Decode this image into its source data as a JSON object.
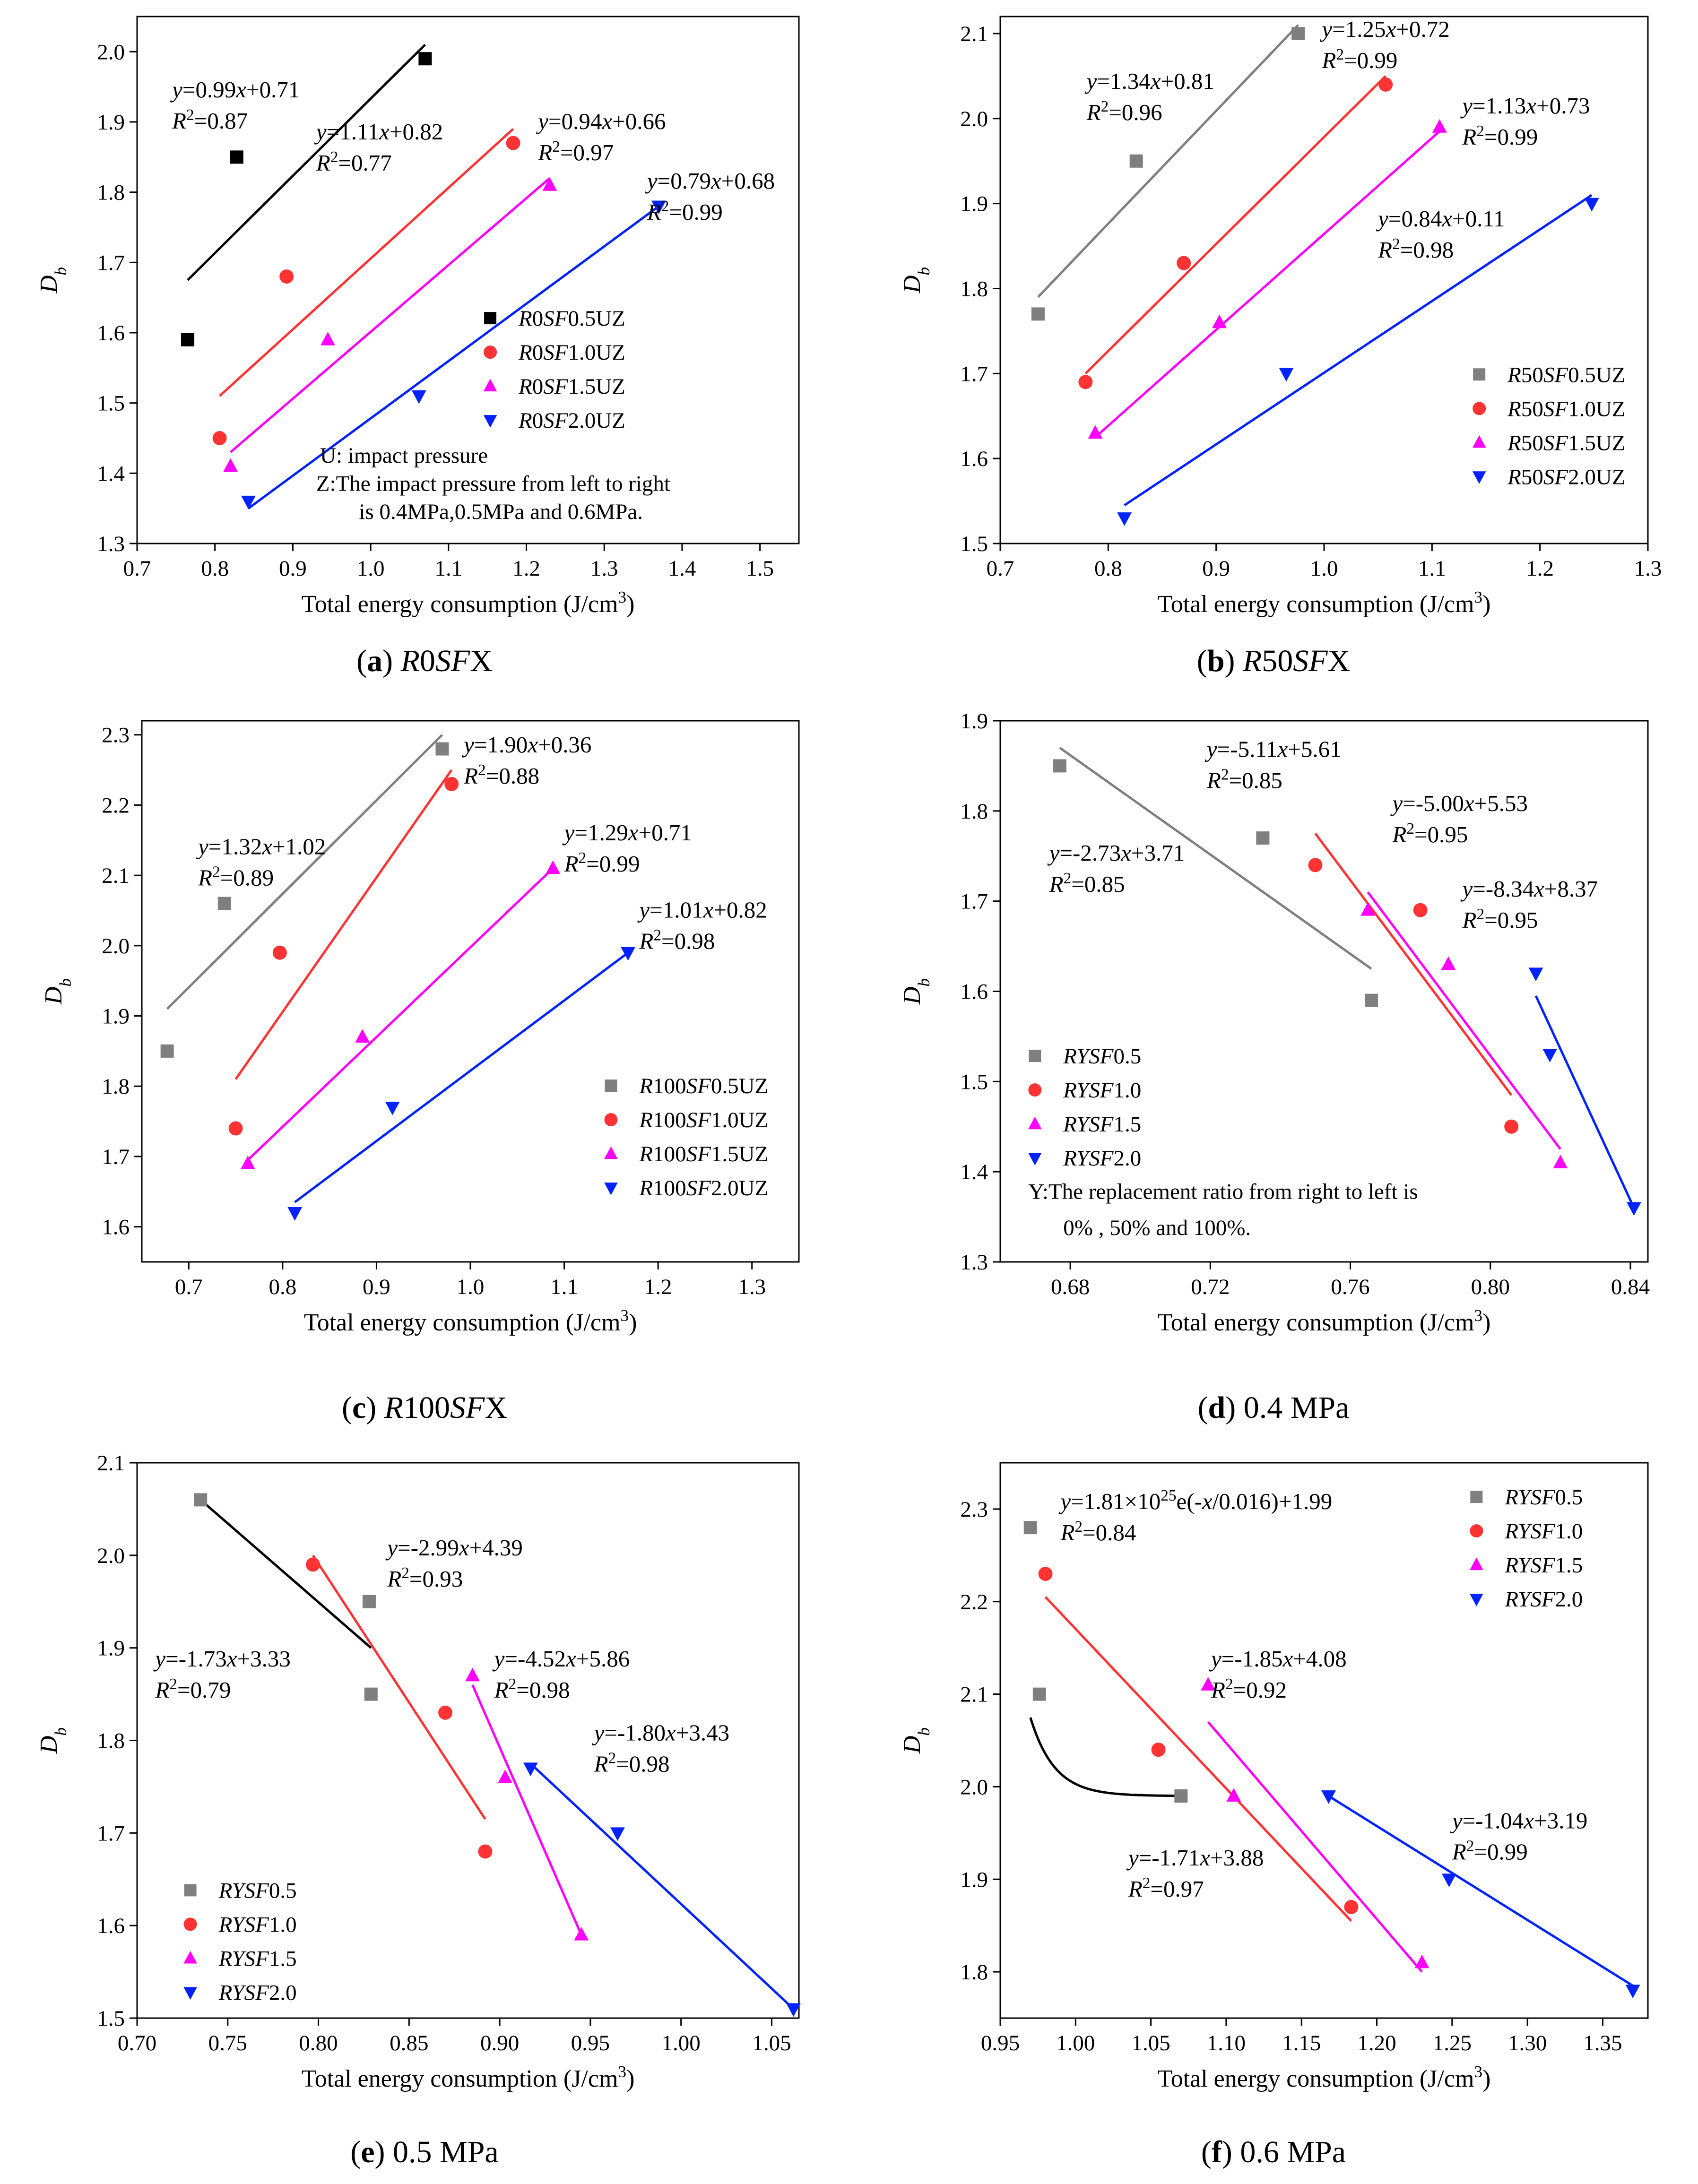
{
  "colors": {
    "grey": "#7f7f7f",
    "black": "#000000",
    "red": "#ff3333",
    "magenta": "#ff00ff",
    "blue": "#0022ff"
  },
  "chart_data": [
    {
      "id": "a",
      "type": "scatter",
      "caption_letter": "a",
      "caption_text": "R0SFX",
      "caption_italic": true,
      "xlabel": "Total energy consumption (J/cm³)",
      "ylabel": "Db",
      "xlim": [
        0.7,
        1.55
      ],
      "ylim": [
        1.3,
        2.05
      ],
      "xticks": [
        0.7,
        0.8,
        0.9,
        1.0,
        1.1,
        1.2,
        1.3,
        1.4,
        1.5
      ],
      "xtick_decimals": 1,
      "yticks": [
        1.3,
        1.4,
        1.5,
        1.6,
        1.7,
        1.8,
        1.9,
        2.0
      ],
      "ytick_decimals": 1,
      "series": [
        {
          "name": "R0SF0.5UZ",
          "marker": "square",
          "color": "#000000",
          "x": [
            0.765,
            0.828,
            1.07
          ],
          "y": [
            1.59,
            1.85,
            1.99
          ],
          "fit": {
            "x": [
              0.765,
              1.07
            ],
            "y": [
              1.675,
              2.01
            ]
          }
        },
        {
          "name": "R0SF1.0UZ",
          "marker": "circle",
          "color": "#ff3333",
          "x": [
            0.806,
            0.892,
            1.183
          ],
          "y": [
            1.45,
            1.68,
            1.87
          ],
          "fit": {
            "x": [
              0.806,
              1.183
            ],
            "y": [
              1.51,
              1.89
            ]
          }
        },
        {
          "name": "R0SF1.5UZ",
          "marker": "triangle-up",
          "color": "#ff00ff",
          "x": [
            0.82,
            0.945,
            1.23
          ],
          "y": [
            1.41,
            1.59,
            1.81
          ],
          "fit": {
            "x": [
              0.82,
              1.23
            ],
            "y": [
              1.43,
              1.82
            ]
          }
        },
        {
          "name": "R0SF2.0UZ",
          "marker": "triangle-down",
          "color": "#0022ff",
          "x": [
            0.843,
            1.062,
            1.37
          ],
          "y": [
            1.36,
            1.51,
            1.78
          ],
          "fit": {
            "x": [
              0.843,
              1.37
            ],
            "y": [
              1.35,
              1.78
            ]
          }
        }
      ],
      "annotations": [
        {
          "eq": "y=0.99x+0.71",
          "r2": "R2=0.87",
          "x": 0.745,
          "y": 1.935
        },
        {
          "eq": "y=1.11x+0.82",
          "r2": "R2=0.77",
          "x": 0.93,
          "y": 1.875
        },
        {
          "eq": "y=0.94x+0.66",
          "r2": "R2=0.97",
          "x": 1.215,
          "y": 1.89
        },
        {
          "eq": "y=0.79x+0.68",
          "r2": "R2=0.99",
          "x": 1.355,
          "y": 1.805
        }
      ],
      "legend": {
        "x": 1.19,
        "y": 1.61
      },
      "notes": [
        {
          "text": "U: impact pressure",
          "x": 0.935,
          "y": 1.415
        },
        {
          "text": "Z:The impact pressure from left to right",
          "x": 0.93,
          "y": 1.375
        },
        {
          "text": "is 0.4MPa,0.5MPa and 0.6MPa.",
          "x": 0.985,
          "y": 1.335
        }
      ]
    },
    {
      "id": "b",
      "type": "scatter",
      "caption_letter": "b",
      "caption_text": "R50SFX",
      "caption_italic": true,
      "xlabel": "Total energy consumption (J/cm³)",
      "ylabel": "Db",
      "xlim": [
        0.7,
        1.3
      ],
      "ylim": [
        1.5,
        2.12
      ],
      "xticks": [
        0.7,
        0.8,
        0.9,
        1.0,
        1.1,
        1.2,
        1.3
      ],
      "xtick_decimals": 1,
      "yticks": [
        1.5,
        1.6,
        1.7,
        1.8,
        1.9,
        2.0,
        2.1
      ],
      "ytick_decimals": 1,
      "series": [
        {
          "name": "R50SF0.5UZ",
          "marker": "square",
          "color": "#7f7f7f",
          "x": [
            0.735,
            0.826,
            0.976
          ],
          "y": [
            1.77,
            1.95,
            2.1
          ],
          "fit": {
            "x": [
              0.735,
              0.976
            ],
            "y": [
              1.79,
              2.11
            ]
          }
        },
        {
          "name": "R50SF1.0UZ",
          "marker": "circle",
          "color": "#ff3333",
          "x": [
            0.779,
            0.87,
            1.057
          ],
          "y": [
            1.69,
            1.83,
            2.04
          ],
          "fit": {
            "x": [
              0.779,
              1.057
            ],
            "y": [
              1.7,
              2.05
            ]
          }
        },
        {
          "name": "R50SF1.5UZ",
          "marker": "triangle-up",
          "color": "#ff00ff",
          "x": [
            0.788,
            0.903,
            1.107
          ],
          "y": [
            1.63,
            1.76,
            1.99
          ],
          "fit": {
            "x": [
              0.788,
              1.107
            ],
            "y": [
              1.625,
              1.985
            ]
          }
        },
        {
          "name": "R50SF2.0UZ",
          "marker": "triangle-down",
          "color": "#0022ff",
          "x": [
            0.815,
            0.965,
            1.248
          ],
          "y": [
            1.53,
            1.7,
            1.9
          ],
          "fit": {
            "x": [
              0.815,
              1.248
            ],
            "y": [
              1.545,
              1.91
            ]
          }
        }
      ],
      "annotations": [
        {
          "eq": "y=1.34x+0.81",
          "r2": "R2=0.96",
          "x": 0.78,
          "y": 2.035
        },
        {
          "eq": "y=1.25x+0.72",
          "r2": "R2=0.99",
          "x": 0.998,
          "y": 2.096
        },
        {
          "eq": "y=1.13x+0.73",
          "r2": "R2=0.99",
          "x": 1.128,
          "y": 2.006
        },
        {
          "eq": "y=0.84x+0.11",
          "r2": "R2=0.98",
          "x": 1.05,
          "y": 1.873
        }
      ],
      "legend": {
        "x": 1.17,
        "y": 1.69
      },
      "notes": []
    },
    {
      "id": "c",
      "type": "scatter",
      "caption_letter": "c",
      "caption_text": "R100SFX",
      "caption_italic": true,
      "xlabel": "Total energy consumption (J/cm³)",
      "ylabel": "Db",
      "xlim": [
        0.65,
        1.35
      ],
      "ylim": [
        1.55,
        2.32
      ],
      "xticks": [
        0.7,
        0.8,
        0.9,
        1.0,
        1.1,
        1.2,
        1.3
      ],
      "xtick_decimals": 1,
      "yticks": [
        1.6,
        1.7,
        1.8,
        1.9,
        2.0,
        2.1,
        2.2,
        2.3
      ],
      "ytick_decimals": 1,
      "series": [
        {
          "name": "R100SF0.5UZ",
          "marker": "square",
          "color": "#7f7f7f",
          "x": [
            0.677,
            0.738,
            0.97
          ],
          "y": [
            1.85,
            2.06,
            2.28
          ],
          "fit": {
            "x": [
              0.677,
              0.97
            ],
            "y": [
              1.91,
              2.3
            ]
          }
        },
        {
          "name": "R100SF1.0UZ",
          "marker": "circle",
          "color": "#ff3333",
          "x": [
            0.75,
            0.797,
            0.98
          ],
          "y": [
            1.74,
            1.99,
            2.23
          ],
          "fit": {
            "x": [
              0.75,
              0.98
            ],
            "y": [
              1.81,
              2.25
            ]
          }
        },
        {
          "name": "R100SF1.5UZ",
          "marker": "triangle-up",
          "color": "#ff00ff",
          "x": [
            0.763,
            0.885,
            1.088
          ],
          "y": [
            1.69,
            1.87,
            2.11
          ],
          "fit": {
            "x": [
              0.763,
              1.088
            ],
            "y": [
              1.695,
              2.11
            ]
          }
        },
        {
          "name": "R100SF2.0UZ",
          "marker": "triangle-down",
          "color": "#0022ff",
          "x": [
            0.813,
            0.917,
            1.168
          ],
          "y": [
            1.62,
            1.77,
            1.99
          ],
          "fit": {
            "x": [
              0.813,
              1.168
            ],
            "y": [
              1.635,
              1.99
            ]
          }
        }
      ],
      "annotations": [
        {
          "eq": "y=1.32x+1.02",
          "r2": "R2=0.89",
          "x": 0.71,
          "y": 2.13
        },
        {
          "eq": "y=1.90x+0.36",
          "r2": "R2=0.88",
          "x": 0.993,
          "y": 2.275
        },
        {
          "eq": "y=1.29x+0.71",
          "r2": "R2=0.99",
          "x": 1.1,
          "y": 2.15
        },
        {
          "eq": "y=1.01x+0.82",
          "r2": "R2=0.98",
          "x": 1.18,
          "y": 2.04
        }
      ],
      "legend": {
        "x": 1.18,
        "y": 1.79
      },
      "notes": []
    },
    {
      "id": "d",
      "type": "scatter",
      "caption_letter": "d",
      "caption_text": "0.4 MPa",
      "caption_italic": false,
      "xlabel": "Total energy consumption (J/cm³)",
      "ylabel": "Db",
      "xlim": [
        0.66,
        0.845
      ],
      "ylim": [
        1.3,
        1.9
      ],
      "xticks": [
        0.68,
        0.72,
        0.76,
        0.8,
        0.84
      ],
      "xtick_decimals": 2,
      "yticks": [
        1.3,
        1.4,
        1.5,
        1.6,
        1.7,
        1.8,
        1.9
      ],
      "ytick_decimals": 1,
      "series": [
        {
          "name": "RYSF0.5",
          "marker": "square",
          "color": "#7f7f7f",
          "x": [
            0.677,
            0.735,
            0.766
          ],
          "y": [
            1.85,
            1.77,
            1.59
          ],
          "fit": {
            "x": [
              0.677,
              0.766
            ],
            "y": [
              1.87,
              1.625
            ]
          }
        },
        {
          "name": "RYSF1.0",
          "marker": "circle",
          "color": "#ff3333",
          "x": [
            0.75,
            0.78,
            0.806
          ],
          "y": [
            1.74,
            1.69,
            1.45
          ],
          "fit": {
            "x": [
              0.75,
              0.806
            ],
            "y": [
              1.775,
              1.485
            ]
          }
        },
        {
          "name": "RYSF1.5",
          "marker": "triangle-up",
          "color": "#ff00ff",
          "x": [
            0.765,
            0.788,
            0.82
          ],
          "y": [
            1.69,
            1.63,
            1.41
          ],
          "fit": {
            "x": [
              0.765,
              0.82
            ],
            "y": [
              1.71,
              1.425
            ]
          }
        },
        {
          "name": "RYSF2.0",
          "marker": "triangle-down",
          "color": "#0022ff",
          "x": [
            0.813,
            0.817,
            0.841
          ],
          "y": [
            1.62,
            1.53,
            1.36
          ],
          "fit": {
            "x": [
              0.813,
              0.841
            ],
            "y": [
              1.595,
              1.36
            ]
          }
        }
      ],
      "annotations": [
        {
          "eq": "y=-2.73x+3.71",
          "r2": "R2=0.85",
          "x": 0.674,
          "y": 1.745
        },
        {
          "eq": "y=-5.11x+5.61",
          "r2": "R2=0.85",
          "x": 0.719,
          "y": 1.86
        },
        {
          "eq": "y=-5.00x+5.53",
          "r2": "R2=0.95",
          "x": 0.772,
          "y": 1.8
        },
        {
          "eq": "y=-8.34x+8.37",
          "r2": "R2=0.95",
          "x": 0.792,
          "y": 1.705
        }
      ],
      "legend": {
        "x": 0.678,
        "y": 1.52
      },
      "notes": [
        {
          "text": "Y:The replacement ratio from right to left is",
          "x": 0.668,
          "y": 1.37
        },
        {
          "text": "0% , 50% and 100%.",
          "x": 0.678,
          "y": 1.33
        }
      ]
    },
    {
      "id": "e",
      "type": "scatter",
      "caption_letter": "e",
      "caption_text": "0.5 MPa",
      "caption_italic": false,
      "xlabel": "Total energy consumption (J/cm³)",
      "ylabel": "Db",
      "xlim": [
        0.7,
        1.065
      ],
      "ylim": [
        1.5,
        2.1
      ],
      "xticks": [
        0.7,
        0.75,
        0.8,
        0.85,
        0.9,
        0.95,
        1.0,
        1.05
      ],
      "xtick_decimals": 2,
      "yticks": [
        1.5,
        1.6,
        1.7,
        1.8,
        1.9,
        2.0,
        2.1
      ],
      "ytick_decimals": 1,
      "series": [
        {
          "name": "RYSF0.5",
          "marker": "square",
          "color": "#7f7f7f",
          "x": [
            0.735,
            0.828,
            0.829
          ],
          "y": [
            2.06,
            1.95,
            1.85
          ],
          "fit": {
            "x": [
              0.735,
              0.829
            ],
            "y": [
              2.06,
              1.9
            ]
          },
          "fit_color": "#000000"
        },
        {
          "name": "RYSF1.0",
          "marker": "circle",
          "color": "#ff3333",
          "x": [
            0.797,
            0.87,
            0.892
          ],
          "y": [
            1.99,
            1.83,
            1.68
          ],
          "fit": {
            "x": [
              0.797,
              0.892
            ],
            "y": [
              2.0,
              1.715
            ]
          }
        },
        {
          "name": "RYSF1.5",
          "marker": "triangle-up",
          "color": "#ff00ff",
          "x": [
            0.885,
            0.903,
            0.945
          ],
          "y": [
            1.87,
            1.76,
            1.59
          ],
          "fit": {
            "x": [
              0.885,
              0.945
            ],
            "y": [
              1.86,
              1.59
            ]
          }
        },
        {
          "name": "RYSF2.0",
          "marker": "triangle-down",
          "color": "#0022ff",
          "x": [
            0.917,
            0.965,
            1.062
          ],
          "y": [
            1.77,
            1.7,
            1.51
          ],
          "fit": {
            "x": [
              0.917,
              1.062
            ],
            "y": [
              1.775,
              1.51
            ]
          }
        }
      ],
      "annotations": [
        {
          "eq": "y=-1.73x+3.33",
          "r2": "R2=0.79",
          "x": 0.71,
          "y": 1.88
        },
        {
          "eq": "y=-2.99x+4.39",
          "r2": "R2=0.93",
          "x": 0.838,
          "y": 2.0
        },
        {
          "eq": "y=-4.52x+5.86",
          "r2": "R2=0.98",
          "x": 0.897,
          "y": 1.88
        },
        {
          "eq": "y=-1.80x+3.43",
          "r2": "R2=0.98",
          "x": 0.952,
          "y": 1.8
        }
      ],
      "legend": {
        "x": 0.745,
        "y": 1.63
      },
      "notes": []
    },
    {
      "id": "f",
      "type": "scatter",
      "caption_letter": "f",
      "caption_text": "0.6 MPa",
      "caption_italic": false,
      "xlabel": "Total energy consumption (J/cm³)",
      "ylabel": "Db",
      "xlim": [
        0.95,
        1.38
      ],
      "ylim": [
        1.75,
        2.35
      ],
      "xticks": [
        0.95,
        1.0,
        1.05,
        1.1,
        1.15,
        1.2,
        1.25,
        1.3,
        1.35
      ],
      "xtick_decimals": 2,
      "yticks": [
        1.8,
        1.9,
        2.0,
        2.1,
        2.2,
        2.3
      ],
      "ytick_decimals": 1,
      "series": [
        {
          "name": "RYSF0.5",
          "marker": "square",
          "color": "#7f7f7f",
          "x": [
            0.97,
            0.976,
            1.07
          ],
          "y": [
            2.28,
            2.1,
            1.99
          ],
          "fit_curve": {
            "a": 1.81e+25,
            "t": 0.016,
            "c": 1.99,
            "x0": 0.97,
            "x1": 1.07
          },
          "fit_color": "#000000"
        },
        {
          "name": "RYSF1.0",
          "marker": "circle",
          "color": "#ff3333",
          "x": [
            0.98,
            1.055,
            1.183
          ],
          "y": [
            2.23,
            2.04,
            1.87
          ],
          "fit": {
            "x": [
              0.98,
              1.183
            ],
            "y": [
              2.205,
              1.855
            ]
          }
        },
        {
          "name": "RYSF1.5",
          "marker": "triangle-up",
          "color": "#ff00ff",
          "x": [
            1.088,
            1.105,
            1.23
          ],
          "y": [
            2.11,
            1.99,
            1.81
          ],
          "fit": {
            "x": [
              1.088,
              1.23
            ],
            "y": [
              2.07,
              1.8
            ]
          }
        },
        {
          "name": "RYSF2.0",
          "marker": "triangle-down",
          "color": "#0022ff",
          "x": [
            1.168,
            1.248,
            1.37
          ],
          "y": [
            1.99,
            1.9,
            1.78
          ],
          "fit": {
            "x": [
              1.168,
              1.37
            ],
            "y": [
              1.99,
              1.785
            ]
          }
        }
      ],
      "annotations": [
        {
          "eq": "y=1.81×1025e(-x/0.016)+1.99",
          "r2": "R2=0.84",
          "x": 0.99,
          "y": 2.3
        },
        {
          "eq": "y=-1.85x+4.08",
          "r2": "R2=0.92",
          "x": 1.09,
          "y": 2.13
        },
        {
          "eq": "y=-1.71x+3.88",
          "r2": "R2=0.97",
          "x": 1.035,
          "y": 1.915
        },
        {
          "eq": "y=-1.04x+3.19",
          "r2": "R2=0.99",
          "x": 1.25,
          "y": 1.955
        }
      ],
      "legend": {
        "x": 1.285,
        "y": 2.305
      },
      "notes": []
    }
  ]
}
